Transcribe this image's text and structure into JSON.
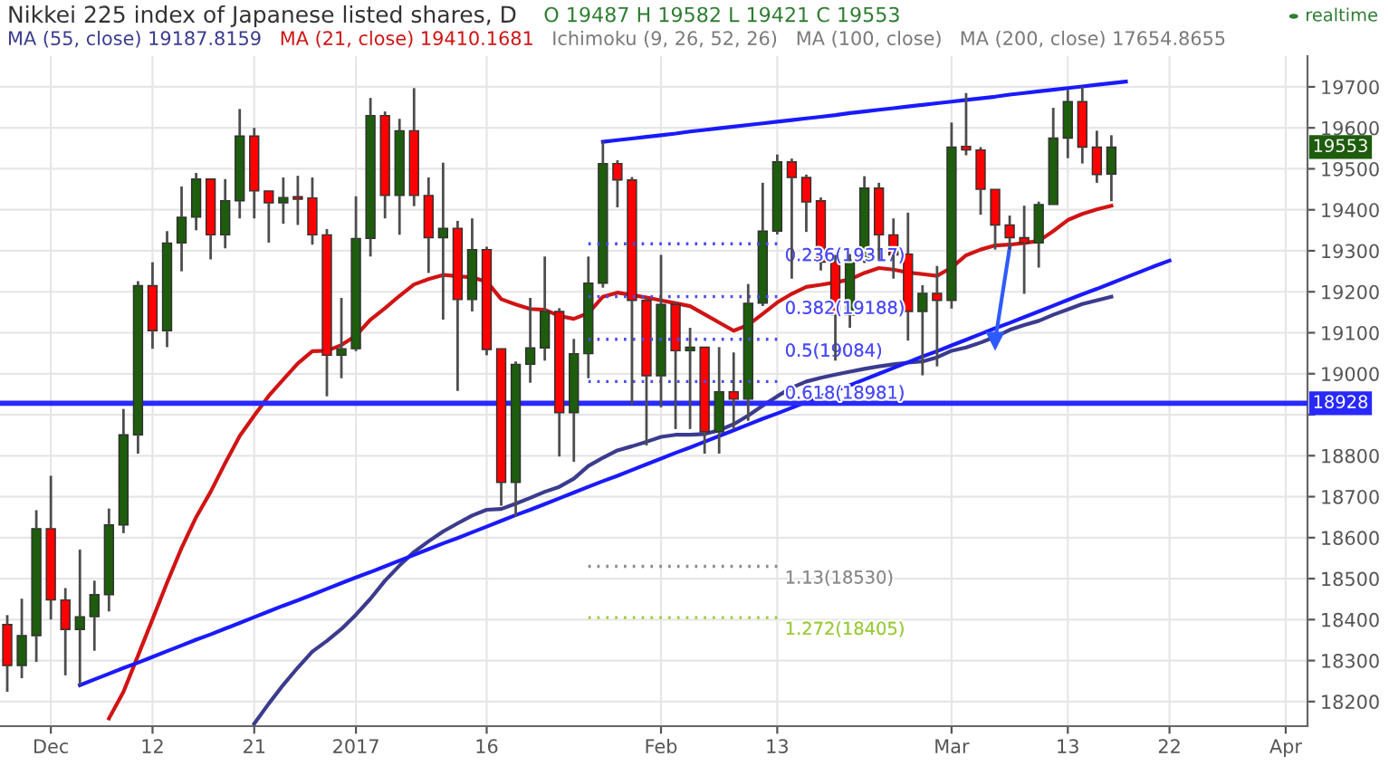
{
  "chart_data": {
    "type": "candlestick",
    "title": "Nikkei 225 index of Japanese listed shares, D",
    "subtitle": "O 19487 H 19582 L 19421 C 19553",
    "categories": [
      null,
      null,
      null,
      "Dec",
      null,
      null,
      null,
      null,
      null,
      null,
      "12",
      null,
      null,
      null,
      null,
      null,
      null,
      "21",
      null,
      null,
      null,
      null,
      null,
      null,
      "2017",
      null,
      null,
      null,
      null,
      null,
      null,
      null,
      null,
      "16",
      null,
      null,
      null,
      null,
      null,
      null,
      null,
      null,
      null,
      null,
      null,
      "Feb",
      null,
      null,
      null,
      null,
      null,
      null,
      null,
      "13",
      null,
      null,
      null,
      null,
      null,
      null,
      null,
      null,
      null,
      null,
      null,
      "Mar",
      null,
      null,
      null,
      null,
      null,
      null,
      null,
      "13",
      null,
      null,
      null,
      null,
      null,
      null,
      "22",
      null,
      null,
      null,
      null,
      null,
      null,
      null,
      "Apr",
      null
    ],
    "ohlc": [
      [
        18388,
        18411,
        18224,
        18288
      ],
      [
        18288,
        18451,
        18257,
        18361
      ],
      [
        18361,
        18667,
        18297,
        18622
      ],
      [
        18622,
        18751,
        18400,
        18448
      ],
      [
        18448,
        18477,
        18264,
        18376
      ],
      [
        18376,
        18571,
        18240,
        18407
      ],
      [
        18407,
        18495,
        18324,
        18461
      ],
      [
        18461,
        18671,
        18420,
        18631
      ],
      [
        18631,
        18914,
        18611,
        18851
      ],
      [
        18851,
        19226,
        18805,
        19215
      ],
      [
        19215,
        19272,
        19061,
        19105
      ],
      [
        19105,
        19348,
        19065,
        19319
      ],
      [
        19319,
        19457,
        19250,
        19382
      ],
      [
        19382,
        19490,
        19350,
        19475
      ],
      [
        19475,
        19475,
        19279,
        19339
      ],
      [
        19339,
        19475,
        19306,
        19422
      ],
      [
        19422,
        19646,
        19379,
        19580
      ],
      [
        19580,
        19600,
        19379,
        19446
      ],
      [
        19446,
        19446,
        19320,
        19417
      ],
      [
        19417,
        19479,
        19366,
        19430
      ],
      [
        19432,
        19483,
        19363,
        19426
      ],
      [
        19429,
        19479,
        19315,
        19339
      ],
      [
        19339,
        19353,
        18945,
        19045
      ],
      [
        19045,
        19185,
        18989,
        19061
      ],
      [
        19061,
        19433,
        19055,
        19330
      ],
      [
        19330,
        19673,
        19286,
        19630
      ],
      [
        19630,
        19640,
        19379,
        19435
      ],
      [
        19435,
        19622,
        19339,
        19593
      ],
      [
        19593,
        19697,
        19409,
        19435
      ],
      [
        19435,
        19479,
        19246,
        19332
      ],
      [
        19332,
        19515,
        19132,
        19355
      ],
      [
        19355,
        19373,
        18958,
        19181
      ],
      [
        19181,
        19379,
        19152,
        19303
      ],
      [
        19303,
        19310,
        19045,
        19059
      ],
      [
        19061,
        19061,
        18678,
        18735
      ],
      [
        18735,
        19030,
        18651,
        19023
      ],
      [
        19023,
        19185,
        18978,
        19063
      ],
      [
        19063,
        19286,
        19032,
        19152
      ],
      [
        19152,
        19160,
        18798,
        18905
      ],
      [
        18905,
        19085,
        18785,
        19049
      ],
      [
        19049,
        19286,
        18989,
        19221
      ],
      [
        19221,
        19566,
        19210,
        19513
      ],
      [
        19513,
        19521,
        19406,
        19473
      ],
      [
        19473,
        19480,
        18925,
        19179
      ],
      [
        19179,
        19185,
        18825,
        18995
      ],
      [
        18995,
        19290,
        18918,
        19169
      ],
      [
        19169,
        19175,
        18865,
        19056
      ],
      [
        19056,
        19112,
        18865,
        19065
      ],
      [
        19065,
        19065,
        18805,
        18858
      ],
      [
        18858,
        19065,
        18805,
        18956
      ],
      [
        18956,
        19052,
        18865,
        18938
      ],
      [
        18938,
        19219,
        18885,
        19172
      ],
      [
        19172,
        19466,
        19165,
        19348
      ],
      [
        19348,
        19535,
        19340,
        19517
      ],
      [
        19517,
        19525,
        19232,
        19479
      ],
      [
        19479,
        19486,
        19346,
        19419
      ],
      [
        19422,
        19430,
        19252,
        19272
      ],
      [
        19272,
        19290,
        19032,
        19143
      ],
      [
        19143,
        19292,
        19112,
        19275
      ],
      [
        19275,
        19482,
        19270,
        19453
      ],
      [
        19453,
        19466,
        19279,
        19339
      ],
      [
        19339,
        19379,
        19232,
        19290
      ],
      [
        19292,
        19393,
        19081,
        19152
      ],
      [
        19152,
        19216,
        18996,
        19196
      ],
      [
        19196,
        19263,
        19018,
        19179
      ],
      [
        19179,
        19613,
        19159,
        19553
      ],
      [
        19555,
        19685,
        19533,
        19546
      ],
      [
        19546,
        19553,
        19388,
        19450
      ],
      [
        19450,
        19450,
        19303,
        19363
      ],
      [
        19363,
        19386,
        19303,
        19332
      ],
      [
        19332,
        19410,
        19195,
        19319
      ],
      [
        19319,
        19420,
        19259,
        19413
      ],
      [
        19413,
        19649,
        19413,
        19575
      ],
      [
        19575,
        19693,
        19526,
        19664
      ],
      [
        19664,
        19700,
        19513,
        19553
      ],
      [
        19553,
        19593,
        19466,
        19486
      ],
      [
        19487,
        19582,
        19421,
        19553
      ],
      null,
      null,
      null,
      null,
      null,
      null,
      null,
      null,
      null,
      null,
      null,
      null,
      null
    ],
    "colors": [
      "#ff0000",
      "#1e5c0e",
      "#1e5c0e",
      "#ff0000",
      "#ff0000",
      "#1e5c0e",
      "#1e5c0e",
      "#1e5c0e",
      "#1e5c0e",
      "#1e5c0e",
      "#ff0000",
      "#1e5c0e",
      "#1e5c0e",
      "#1e5c0e",
      "#ff0000",
      "#1e5c0e",
      "#1e5c0e",
      "#ff0000",
      "#ff0000",
      "#1e5c0e",
      "#ff0000",
      "#ff0000",
      "#ff0000",
      "#1e5c0e",
      "#1e5c0e",
      "#1e5c0e",
      "#ff0000",
      "#1e5c0e",
      "#ff0000",
      "#ff0000",
      "#1e5c0e",
      "#ff0000",
      "#1e5c0e",
      "#ff0000",
      "#ff0000",
      "#1e5c0e",
      "#1e5c0e",
      "#1e5c0e",
      "#ff0000",
      "#1e5c0e",
      "#1e5c0e",
      "#1e5c0e",
      "#ff0000",
      "#ff0000",
      "#ff0000",
      "#1e5c0e",
      "#ff0000",
      "#1e5c0e",
      "#ff0000",
      "#1e5c0e",
      "#ff0000",
      "#1e5c0e",
      "#1e5c0e",
      "#1e5c0e",
      "#ff0000",
      "#ff0000",
      "#ff0000",
      "#ff0000",
      "#1e5c0e",
      "#1e5c0e",
      "#ff0000",
      "#ff0000",
      "#ff0000",
      "#1e5c0e",
      "#ff0000",
      "#1e5c0e",
      "#ff0000",
      "#ff0000",
      "#ff0000",
      "#ff0000",
      "#ff0000",
      "#1e5c0e",
      "#1e5c0e",
      "#1e5c0e",
      "#ff0000",
      "#ff0000",
      "#1e5c0e",
      null,
      null,
      null,
      null,
      null,
      null,
      null,
      null,
      null,
      null,
      null,
      null,
      null
    ],
    "series": [
      {
        "name": "MA (55, close) 19187.8159",
        "type": "line",
        "color": "#3b3b8f",
        "values": [
          null,
          null,
          null,
          null,
          null,
          null,
          null,
          null,
          null,
          null,
          null,
          null,
          null,
          null,
          null,
          null,
          null,
          18146,
          18195,
          18241,
          18283,
          18322,
          18348,
          18377,
          18412,
          18451,
          18495,
          18532,
          18565,
          18591,
          18615,
          18635,
          18654,
          18668,
          18670,
          18683,
          18697,
          18712,
          18724,
          18744,
          18775,
          18795,
          18813,
          18823,
          18834,
          18846,
          18851,
          18851,
          18853,
          18862,
          18877,
          18898,
          18922,
          18945,
          18966,
          18981,
          18990,
          18998,
          19005,
          19012,
          19018,
          19023,
          19027,
          19030,
          19040,
          19056,
          19064,
          19076,
          19090,
          19107,
          19119,
          19129,
          19144,
          19157,
          19170,
          19179,
          19188,
          null,
          null,
          null,
          null,
          null,
          null,
          null,
          null,
          null,
          null,
          null,
          null,
          null
        ]
      },
      {
        "name": "MA (21, close) 19410.1681",
        "type": "line",
        "color": "#d01414",
        "values": [
          null,
          null,
          null,
          null,
          null,
          null,
          null,
          18159,
          18224,
          18312,
          18401,
          18490,
          18575,
          18650,
          18712,
          18782,
          18848,
          18898,
          18946,
          18986,
          19025,
          19055,
          19056,
          19070,
          19093,
          19132,
          19160,
          19190,
          19218,
          19231,
          19241,
          19238,
          19235,
          19225,
          19182,
          19169,
          19158,
          19156,
          19141,
          19134,
          19148,
          19188,
          19198,
          19192,
          19186,
          19179,
          19172,
          19165,
          19145,
          19125,
          19105,
          19119,
          19146,
          19174,
          19195,
          19212,
          19217,
          19223,
          19230,
          19246,
          19258,
          19254,
          19247,
          19243,
          19239,
          19259,
          19289,
          19303,
          19313,
          19315,
          19319,
          19324,
          19348,
          19375,
          19390,
          19401,
          19410,
          null,
          null,
          null,
          null,
          null,
          null,
          null,
          null,
          null,
          null,
          null,
          null,
          null
        ]
      },
      {
        "type": "line",
        "color": "#4a4aff",
        "line_style": "dotted",
        "values": [
          null,
          null,
          null,
          null,
          null,
          null,
          null,
          null,
          null,
          null,
          null,
          null,
          null,
          null,
          null,
          null,
          null,
          null,
          null,
          null,
          null,
          null,
          null,
          null,
          null,
          null,
          null,
          null,
          null,
          null,
          null,
          null,
          null,
          null,
          null,
          null,
          null,
          null,
          null,
          null,
          19317,
          19317,
          19317,
          19317,
          19317,
          19317,
          19317,
          19317,
          19317,
          19317,
          19317,
          19317,
          19317,
          19317,
          null,
          null,
          null,
          null,
          null,
          null,
          null,
          null,
          null,
          null,
          null,
          null,
          null,
          null,
          null,
          null,
          null,
          null,
          null,
          null,
          null,
          null,
          null,
          null,
          null,
          null,
          null,
          null,
          null,
          null,
          null,
          null,
          null,
          null,
          null,
          null
        ]
      },
      {
        "type": "line",
        "color": "#4a4aff",
        "line_style": "dotted",
        "values": [
          null,
          null,
          null,
          null,
          null,
          null,
          null,
          null,
          null,
          null,
          null,
          null,
          null,
          null,
          null,
          null,
          null,
          null,
          null,
          null,
          null,
          null,
          null,
          null,
          null,
          null,
          null,
          null,
          null,
          null,
          null,
          null,
          null,
          null,
          null,
          null,
          null,
          null,
          null,
          null,
          19188,
          19188,
          19188,
          19188,
          19188,
          19188,
          19188,
          19188,
          19188,
          19188,
          19188,
          19188,
          19188,
          19188,
          null,
          null,
          null,
          null,
          null,
          null,
          null,
          null,
          null,
          null,
          null,
          null,
          null,
          null,
          null,
          null,
          null,
          null,
          null,
          null,
          null,
          null,
          null,
          null,
          null,
          null,
          null,
          null,
          null,
          null,
          null,
          null,
          null,
          null,
          null,
          null
        ]
      },
      {
        "type": "line",
        "color": "#4a4aff",
        "line_style": "dotted",
        "values": [
          null,
          null,
          null,
          null,
          null,
          null,
          null,
          null,
          null,
          null,
          null,
          null,
          null,
          null,
          null,
          null,
          null,
          null,
          null,
          null,
          null,
          null,
          null,
          null,
          null,
          null,
          null,
          null,
          null,
          null,
          null,
          null,
          null,
          null,
          null,
          null,
          null,
          null,
          null,
          null,
          19084,
          19084,
          19084,
          19084,
          19084,
          19084,
          19084,
          19084,
          19084,
          19084,
          19084,
          19084,
          19084,
          19084,
          null,
          null,
          null,
          null,
          null,
          null,
          null,
          null,
          null,
          null,
          null,
          null,
          null,
          null,
          null,
          null,
          null,
          null,
          null,
          null,
          null,
          null,
          null,
          null,
          null,
          null,
          null,
          null,
          null,
          null,
          null,
          null,
          null,
          null,
          null,
          null
        ]
      },
      {
        "type": "line",
        "color": "#4a4aff",
        "line_style": "dotted",
        "values": [
          null,
          null,
          null,
          null,
          null,
          null,
          null,
          null,
          null,
          null,
          null,
          null,
          null,
          null,
          null,
          null,
          null,
          null,
          null,
          null,
          null,
          null,
          null,
          null,
          null,
          null,
          null,
          null,
          null,
          null,
          null,
          null,
          null,
          null,
          null,
          null,
          null,
          null,
          null,
          null,
          18981,
          18981,
          18981,
          18981,
          18981,
          18981,
          18981,
          18981,
          18981,
          18981,
          18981,
          18981,
          18981,
          18981,
          null,
          null,
          null,
          null,
          null,
          null,
          null,
          null,
          null,
          null,
          null,
          null,
          null,
          null,
          null,
          null,
          null,
          null,
          null,
          null,
          null,
          null,
          null,
          null,
          null,
          null,
          null,
          null,
          null,
          null,
          null,
          null,
          null,
          null,
          null,
          null
        ]
      },
      {
        "type": "line",
        "color": "#8c8c8c",
        "line_style": "dotted",
        "values": [
          null,
          null,
          null,
          null,
          null,
          null,
          null,
          null,
          null,
          null,
          null,
          null,
          null,
          null,
          null,
          null,
          null,
          null,
          null,
          null,
          null,
          null,
          null,
          null,
          null,
          null,
          null,
          null,
          null,
          null,
          null,
          null,
          null,
          null,
          null,
          null,
          null,
          null,
          null,
          null,
          18530,
          18530,
          18530,
          18530,
          18530,
          18530,
          18530,
          18530,
          18530,
          18530,
          18530,
          18530,
          18530,
          18530,
          null,
          null,
          null,
          null,
          null,
          null,
          null,
          null,
          null,
          null,
          null,
          null,
          null,
          null,
          null,
          null,
          null,
          null,
          null,
          null,
          null,
          null,
          null,
          null,
          null,
          null,
          null,
          null,
          null,
          null,
          null,
          null,
          null,
          null,
          null,
          null
        ]
      },
      {
        "type": "line",
        "color": "#9ccc3c",
        "line_style": "dotted",
        "values": [
          null,
          null,
          null,
          null,
          null,
          null,
          null,
          null,
          null,
          null,
          null,
          null,
          null,
          null,
          null,
          null,
          null,
          null,
          null,
          null,
          null,
          null,
          null,
          null,
          null,
          null,
          null,
          null,
          null,
          null,
          null,
          null,
          null,
          null,
          null,
          null,
          null,
          null,
          null,
          null,
          18405,
          18405,
          18405,
          18405,
          18405,
          18405,
          18405,
          18405,
          18405,
          18405,
          18405,
          18405,
          18405,
          18405,
          null,
          null,
          null,
          null,
          null,
          null,
          null,
          null,
          null,
          null,
          null,
          null,
          null,
          null,
          null,
          null,
          null,
          null,
          null,
          null,
          null,
          null,
          null,
          null,
          null,
          null,
          null,
          null,
          null,
          null,
          null,
          null,
          null,
          null,
          null,
          null
        ]
      },
      {
        "type": "line",
        "color": "#1a1aff",
        "values": [
          null,
          null,
          null,
          null,
          null,
          null,
          null,
          null,
          null,
          null,
          null,
          null,
          null,
          null,
          null,
          null,
          null,
          null,
          null,
          null,
          null,
          null,
          null,
          null,
          null,
          null,
          null,
          null,
          null,
          null,
          null,
          null,
          null,
          null,
          null,
          null,
          null,
          null,
          null,
          null,
          null,
          19566,
          19570,
          19574,
          19578,
          19582,
          19586,
          19591,
          19595,
          19599,
          19603,
          19607,
          19611,
          19615,
          19619,
          19623,
          19627,
          19631,
          19636,
          19640,
          19644,
          19648,
          19652,
          19656,
          19660,
          19664,
          19668,
          19672,
          19676,
          19681,
          19685,
          19689,
          19693,
          19697,
          19701,
          19705,
          19709,
          19713,
          null,
          null,
          null,
          null,
          null,
          null,
          null,
          null,
          null,
          null,
          null,
          null
        ]
      },
      {
        "type": "line",
        "color": "#1a1aff",
        "values": [
          null,
          null,
          null,
          null,
          null,
          18240,
          18254,
          18268,
          18282,
          18295,
          18309,
          18323,
          18337,
          18351,
          18364,
          18378,
          18392,
          18406,
          18420,
          18434,
          18447,
          18461,
          18475,
          18489,
          18503,
          18516,
          18530,
          18544,
          18558,
          18572,
          18586,
          18599,
          18613,
          18627,
          18641,
          18655,
          18668,
          18682,
          18696,
          18710,
          18724,
          18738,
          18751,
          18765,
          18779,
          18793,
          18807,
          18820,
          18834,
          18848,
          18862,
          18876,
          18890,
          18903,
          18917,
          18931,
          18945,
          18959,
          18972,
          18986,
          19000,
          19014,
          19028,
          19042,
          19055,
          19069,
          19083,
          19097,
          19111,
          19124,
          19138,
          19152,
          19166,
          19180,
          19194,
          19207,
          19221,
          19235,
          19249,
          19263,
          19276,
          null,
          null,
          null,
          null,
          null,
          null,
          null,
          null,
          null
        ]
      },
      {
        "type": "line",
        "color": "#2e5bff",
        "marker": "triangle",
        "values": [
          null,
          null,
          null,
          null,
          null,
          null,
          null,
          null,
          null,
          null,
          null,
          null,
          null,
          null,
          null,
          null,
          null,
          null,
          null,
          null,
          null,
          null,
          null,
          null,
          null,
          null,
          null,
          null,
          null,
          null,
          null,
          null,
          null,
          null,
          null,
          null,
          null,
          null,
          null,
          null,
          null,
          null,
          null,
          null,
          null,
          null,
          null,
          null,
          null,
          null,
          null,
          null,
          null,
          null,
          null,
          null,
          null,
          null,
          null,
          null,
          null,
          null,
          null,
          null,
          null,
          null,
          null,
          null,
          19081,
          19308,
          null,
          null,
          null,
          null,
          null,
          null,
          null,
          null,
          null,
          null,
          null,
          null,
          null,
          null,
          null,
          null,
          null,
          null,
          null,
          null
        ]
      }
    ],
    "ref_lines": [
      {
        "axis": "y",
        "value": 18928,
        "label": "18928",
        "color": "#2929ff"
      }
    ],
    "annotations": [
      "realtime",
      "Ichimoku (9, 26, 52, 26)",
      "MA (100, close)",
      "MA (200, close) 17654.8655",
      {
        "text": "0.236(19317)",
        "x": "13",
        "y": 19317
      },
      {
        "text": "0.382(19188)",
        "x": "13",
        "y": 19188
      },
      {
        "text": "0.5(19084)",
        "x": "13",
        "y": 19084
      },
      {
        "text": "0.618(18981)",
        "x": "13",
        "y": 18981
      },
      {
        "text": "1.13(18530)",
        "x": "13",
        "y": 18530
      },
      {
        "text": "1.272(18405)",
        "x": "13",
        "y": 18405
      },
      {
        "text": "19553",
        "y": 19553
      }
    ],
    "ylim": [
      18140,
      19775
    ],
    "yticks": [
      18200,
      18300,
      18400,
      18500,
      18600,
      18700,
      18800,
      {
        "value": 18900,
        "label": null
      },
      19000,
      19100,
      19200,
      19300,
      19400,
      19500,
      19600,
      19700
    ],
    "grid": true,
    "legend": "top left"
  }
}
